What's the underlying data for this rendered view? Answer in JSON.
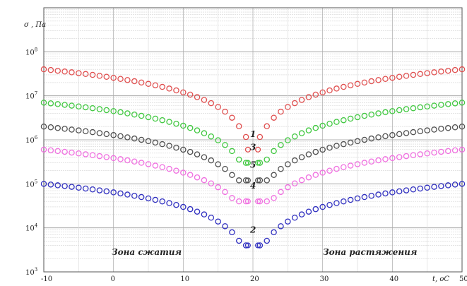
{
  "chart_data": {
    "type": "scatter",
    "title": "",
    "ylabel": "σ , Па",
    "xlabel": "t, oC",
    "y_scale": "log",
    "ylim": [
      1000,
      1000000000
    ],
    "xlim": [
      -10,
      50
    ],
    "grid": true,
    "x_ticks": [
      "-10",
      "0",
      "10",
      "20",
      "30",
      "40",
      "50"
    ],
    "y_ticks": [
      {
        "base": "10",
        "exp": "3"
      },
      {
        "base": "10",
        "exp": "4"
      },
      {
        "base": "10",
        "exp": "5"
      },
      {
        "base": "10",
        "exp": "6"
      },
      {
        "base": "10",
        "exp": "7"
      },
      {
        "base": "10",
        "exp": "8"
      }
    ],
    "annotations": {
      "zone_left": "Зона сжатия",
      "zone_right": "Зона растяжения"
    },
    "series": [
      {
        "label": "1",
        "color": "#e05050",
        "amplitude": 40000000,
        "minimum": 600000
      },
      {
        "label": "3",
        "color": "#40c840",
        "amplitude": 7000000,
        "minimum": 300000
      },
      {
        "label": "5",
        "color": "#505050",
        "amplitude": 2000000,
        "minimum": 120000
      },
      {
        "label": "4",
        "color": "#f070e0",
        "amplitude": 600000,
        "minimum": 40000
      },
      {
        "label": "2",
        "color": "#3030c0",
        "amplitude": 100000,
        "minimum": 4000
      }
    ],
    "shape": {
      "x_center": 20,
      "x_step": 1,
      "min_distance": 1.2,
      "exponent": 1.1
    }
  }
}
